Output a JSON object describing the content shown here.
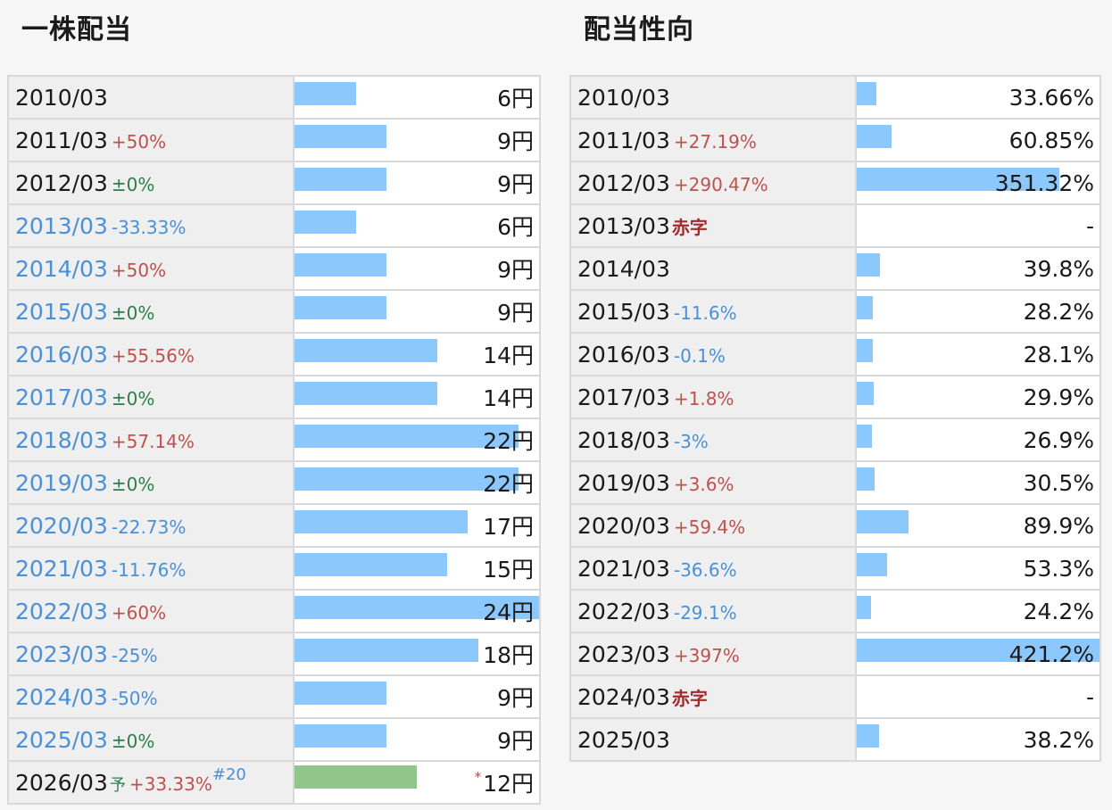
{
  "dividend": {
    "title": "一株配当",
    "bar_color": "#8cc8fb",
    "forecast_bar_color": "#92c58b",
    "max_value": 24,
    "rows": [
      {
        "year": "2010/03",
        "change": "",
        "change_type": "",
        "value": "6円",
        "num": 6,
        "year_color": "black"
      },
      {
        "year": "2011/03",
        "change": "+50%",
        "change_type": "up",
        "value": "9円",
        "num": 9,
        "year_color": "black"
      },
      {
        "year": "2012/03",
        "change": "±0%",
        "change_type": "flat",
        "value": "9円",
        "num": 9,
        "year_color": "black"
      },
      {
        "year": "2013/03",
        "change": "-33.33%",
        "change_type": "down",
        "value": "6円",
        "num": 6,
        "year_color": "blue"
      },
      {
        "year": "2014/03",
        "change": "+50%",
        "change_type": "up",
        "value": "9円",
        "num": 9,
        "year_color": "blue"
      },
      {
        "year": "2015/03",
        "change": "±0%",
        "change_type": "flat",
        "value": "9円",
        "num": 9,
        "year_color": "blue"
      },
      {
        "year": "2016/03",
        "change": "+55.56%",
        "change_type": "up",
        "value": "14円",
        "num": 14,
        "year_color": "blue"
      },
      {
        "year": "2017/03",
        "change": "±0%",
        "change_type": "flat",
        "value": "14円",
        "num": 14,
        "year_color": "blue"
      },
      {
        "year": "2018/03",
        "change": "+57.14%",
        "change_type": "up",
        "value": "22円",
        "num": 22,
        "year_color": "blue"
      },
      {
        "year": "2019/03",
        "change": "±0%",
        "change_type": "flat",
        "value": "22円",
        "num": 22,
        "year_color": "blue"
      },
      {
        "year": "2020/03",
        "change": "-22.73%",
        "change_type": "down",
        "value": "17円",
        "num": 17,
        "year_color": "blue"
      },
      {
        "year": "2021/03",
        "change": "-11.76%",
        "change_type": "down",
        "value": "15円",
        "num": 15,
        "year_color": "blue"
      },
      {
        "year": "2022/03",
        "change": "+60%",
        "change_type": "up",
        "value": "24円",
        "num": 24,
        "year_color": "blue"
      },
      {
        "year": "2023/03",
        "change": "-25%",
        "change_type": "down",
        "value": "18円",
        "num": 18,
        "year_color": "blue"
      },
      {
        "year": "2024/03",
        "change": "-50%",
        "change_type": "down",
        "value": "9円",
        "num": 9,
        "year_color": "blue"
      },
      {
        "year": "2025/03",
        "change": "±0%",
        "change_type": "flat",
        "value": "9円",
        "num": 9,
        "year_color": "blue"
      }
    ],
    "forecast": {
      "year": "2026/03",
      "forecast_mark": "予",
      "change": "+33.33%",
      "note": "#20",
      "star": "*",
      "value": "12円",
      "num": 12
    }
  },
  "payout": {
    "title": "配当性向",
    "bar_color": "#8cc8fb",
    "max_value": 421.2,
    "rows": [
      {
        "year": "2010/03",
        "change": "",
        "change_type": "",
        "value": "33.66%",
        "num": 33.66
      },
      {
        "year": "2011/03",
        "change": "+27.19%",
        "change_type": "up",
        "value": "60.85%",
        "num": 60.85
      },
      {
        "year": "2012/03",
        "change": "+290.47%",
        "change_type": "up",
        "value": "351.32%",
        "num": 351.32
      },
      {
        "year": "2013/03",
        "change": "赤字",
        "change_type": "red",
        "value": "-",
        "num": 0
      },
      {
        "year": "2014/03",
        "change": "",
        "change_type": "",
        "value": "39.8%",
        "num": 39.8
      },
      {
        "year": "2015/03",
        "change": "-11.6%",
        "change_type": "down",
        "value": "28.2%",
        "num": 28.2
      },
      {
        "year": "2016/03",
        "change": "-0.1%",
        "change_type": "down",
        "value": "28.1%",
        "num": 28.1
      },
      {
        "year": "2017/03",
        "change": "+1.8%",
        "change_type": "up",
        "value": "29.9%",
        "num": 29.9
      },
      {
        "year": "2018/03",
        "change": "-3%",
        "change_type": "down",
        "value": "26.9%",
        "num": 26.9
      },
      {
        "year": "2019/03",
        "change": "+3.6%",
        "change_type": "up",
        "value": "30.5%",
        "num": 30.5
      },
      {
        "year": "2020/03",
        "change": "+59.4%",
        "change_type": "up",
        "value": "89.9%",
        "num": 89.9
      },
      {
        "year": "2021/03",
        "change": "-36.6%",
        "change_type": "down",
        "value": "53.3%",
        "num": 53.3
      },
      {
        "year": "2022/03",
        "change": "-29.1%",
        "change_type": "down",
        "value": "24.2%",
        "num": 24.2
      },
      {
        "year": "2023/03",
        "change": "+397%",
        "change_type": "up",
        "value": "421.2%",
        "num": 421.2
      },
      {
        "year": "2024/03",
        "change": "赤字",
        "change_type": "red",
        "value": "-",
        "num": 0
      },
      {
        "year": "2025/03",
        "change": "",
        "change_type": "",
        "value": "38.2%",
        "num": 38.2
      }
    ]
  }
}
